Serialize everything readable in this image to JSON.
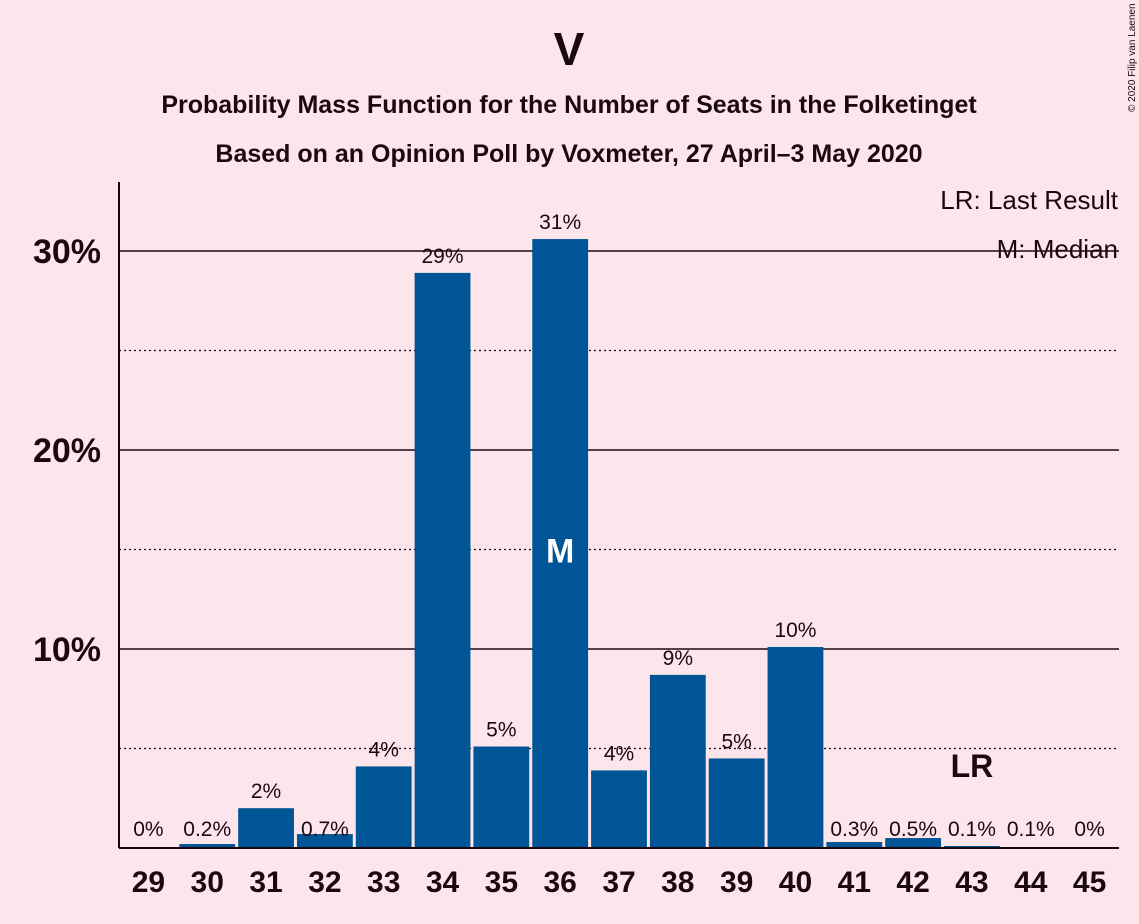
{
  "chart_data": {
    "type": "bar",
    "title": "V",
    "subtitle_1": "Probability Mass Function for the Number of Seats in the Folketinget",
    "subtitle_2": "Based on an Opinion Poll by Voxmeter, 27 April–3 May 2020",
    "copyright": "© 2020 Filip van Laenen",
    "legend": {
      "last_result": "LR: Last Result",
      "median": "M: Median",
      "placement": "top-right"
    },
    "categories": [
      "29",
      "30",
      "31",
      "32",
      "33",
      "34",
      "35",
      "36",
      "37",
      "38",
      "39",
      "40",
      "41",
      "42",
      "43",
      "44",
      "45"
    ],
    "values": [
      0,
      0.2,
      2.0,
      0.7,
      4.1,
      28.9,
      5.1,
      30.6,
      3.9,
      8.7,
      4.5,
      10.1,
      0.3,
      0.5,
      0.1,
      0.05,
      0
    ],
    "data_labels": [
      "0%",
      "0.2%",
      "2%",
      "0.7%",
      "4%",
      "29%",
      "5%",
      "31%",
      "4%",
      "9%",
      "5%",
      "10%",
      "0.3%",
      "0.5%",
      "0.1%",
      "0.1%",
      "0%"
    ],
    "median_seat": "36",
    "median_marker": "M",
    "last_result_seat": "43",
    "last_result_marker": "LR",
    "ylim": [
      0,
      33
    ],
    "yticks": [
      10,
      20,
      30
    ],
    "ytick_labels": [
      "10%",
      "20%",
      "30%"
    ],
    "minor_gridlines": [
      5,
      15,
      25
    ],
    "grid": true,
    "bar_color": "#005596"
  }
}
